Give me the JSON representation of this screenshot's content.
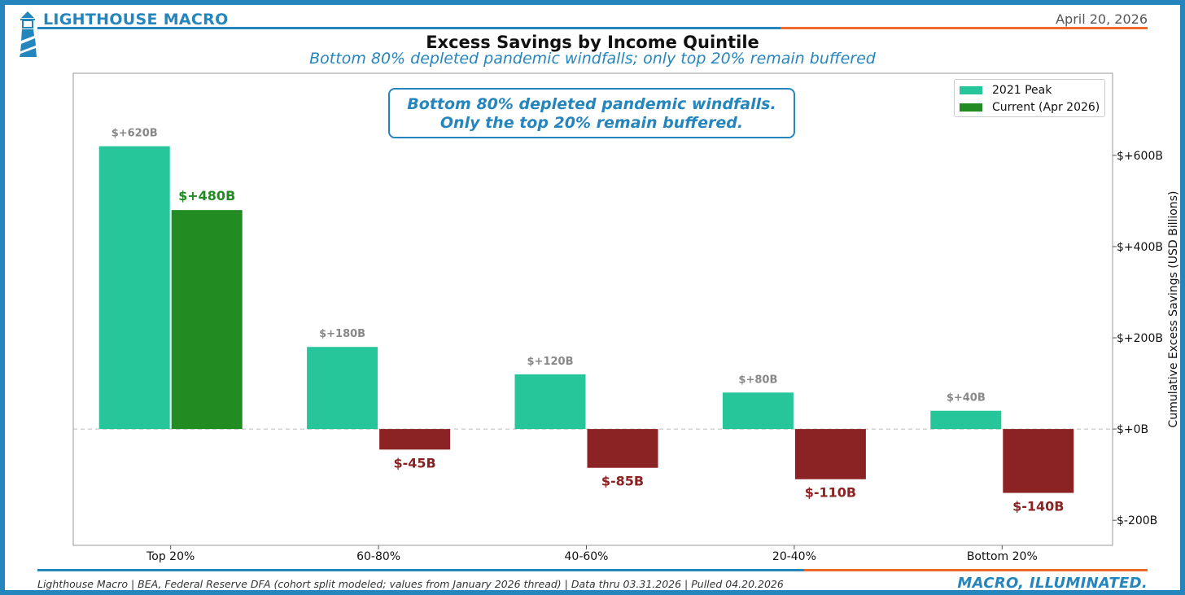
{
  "header": {
    "brand": "LIGHTHOUSE MACRO",
    "date": "April 20, 2026",
    "title": "Excess Savings by Income Quintile",
    "subtitle": "Bottom 80% depleted pandemic windfalls; only top 20% remain buffered"
  },
  "callout": {
    "line1": "Bottom 80% depleted pandemic windfalls.",
    "line2": "Only the top 20% remain buffered."
  },
  "footer": {
    "source": "Lighthouse Macro | BEA, Federal Reserve DFA (cohort split modeled; values from January 2026 thread) | Data thru 03.31.2026 | Pulled 04.20.2026",
    "tagline": "MACRO, ILLUMINATED."
  },
  "colors": {
    "brand_blue": "#2585bd",
    "accent_orange": "#ef6a2a",
    "peak": "#26c59a",
    "current_positive": "#228b22",
    "current_negative": "#8b2223",
    "peak_label": "#888888"
  },
  "chart_data": {
    "type": "bar",
    "categories": [
      "Top 20%",
      "60-80%",
      "40-60%",
      "20-40%",
      "Bottom 20%"
    ],
    "series": [
      {
        "name": "2021 Peak",
        "values": [
          620,
          180,
          120,
          80,
          40
        ]
      },
      {
        "name": "Current (Apr 2026)",
        "values": [
          480,
          -45,
          -85,
          -110,
          -140
        ]
      }
    ],
    "data_labels": {
      "2021 Peak": [
        "$+620B",
        "$+180B",
        "$+120B",
        "$+80B",
        "$+40B"
      ],
      "Current (Apr 2026)": [
        "$+480B",
        "$-45B",
        "$-85B",
        "$-110B",
        "$-140B"
      ]
    },
    "ylabel": "Cumulative Excess Savings (USD Billions)",
    "yticks": [
      -200,
      0,
      200,
      400,
      600
    ],
    "ytick_labels": [
      "$-200B",
      "$+0B",
      "$+200B",
      "$+400B",
      "$+600B"
    ],
    "ylim": [
      -255,
      780
    ],
    "y_axis_side": "right",
    "zero_line": "dashed",
    "legend_position": "top-right",
    "grid": false
  }
}
